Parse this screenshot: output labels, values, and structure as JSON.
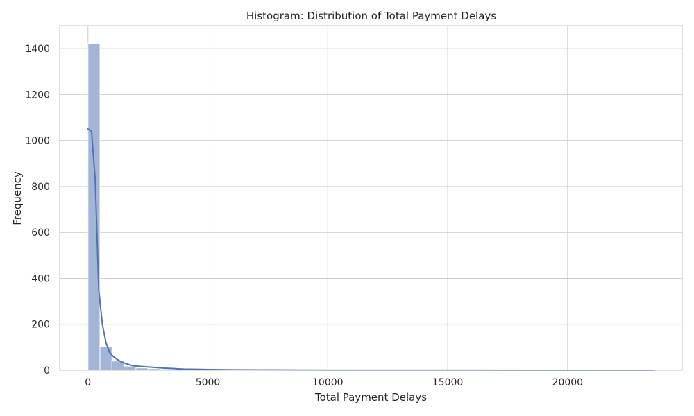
{
  "chart_data": {
    "type": "histogram",
    "title": "Histogram: Distribution of Total Payment Delays",
    "xlabel": "Total Payment Delays",
    "ylabel": "Frequency",
    "xlim": [
      -1180,
      24780
    ],
    "ylim": [
      0,
      1500
    ],
    "xticks": [
      0,
      5000,
      10000,
      15000,
      20000
    ],
    "yticks": [
      0,
      200,
      400,
      600,
      800,
      1000,
      1200,
      1400
    ],
    "grid": true,
    "bin_width": 500,
    "bins": [
      {
        "x0": 0,
        "x1": 500,
        "count": 1422
      },
      {
        "x0": 500,
        "x1": 1000,
        "count": 102
      },
      {
        "x0": 1000,
        "x1": 1500,
        "count": 40
      },
      {
        "x0": 1500,
        "x1": 2000,
        "count": 18
      },
      {
        "x0": 2000,
        "x1": 2500,
        "count": 10
      },
      {
        "x0": 2500,
        "x1": 3000,
        "count": 7
      },
      {
        "x0": 3000,
        "x1": 3500,
        "count": 5
      },
      {
        "x0": 3500,
        "x1": 4000,
        "count": 4
      },
      {
        "x0": 4000,
        "x1": 4500,
        "count": 3
      },
      {
        "x0": 4500,
        "x1": 5000,
        "count": 2
      },
      {
        "x0": 5000,
        "x1": 5500,
        "count": 2
      },
      {
        "x0": 5500,
        "x1": 6000,
        "count": 2
      },
      {
        "x0": 6000,
        "x1": 6500,
        "count": 1
      },
      {
        "x0": 7000,
        "x1": 7500,
        "count": 1
      },
      {
        "x0": 10000,
        "x1": 10500,
        "count": 1
      },
      {
        "x0": 10500,
        "x1": 11000,
        "count": 1
      },
      {
        "x0": 17500,
        "x1": 18000,
        "count": 1
      },
      {
        "x0": 23500,
        "x1": 24000,
        "count": 1
      }
    ],
    "kde": {
      "x": [
        0,
        150,
        300,
        450,
        600,
        750,
        900,
        1050,
        1200,
        1400,
        1600,
        1800,
        2000,
        2400,
        2800,
        3200,
        3600,
        4000,
        4500,
        5000,
        6000,
        7000,
        8000,
        10000,
        12000,
        16000,
        20000,
        23600
      ],
      "y": [
        1050,
        1040,
        830,
        350,
        200,
        120,
        78,
        60,
        48,
        36,
        28,
        22,
        18,
        15,
        12,
        9,
        7,
        5,
        4,
        3,
        2,
        1.5,
        1,
        0.5,
        0.3,
        0.2,
        0.1,
        0.1
      ]
    },
    "colors": {
      "bar_fill": "#a3b5d7",
      "bar_edge": "#ffffff",
      "kde_line": "#4c72b0",
      "grid": "#cccccc",
      "frame": "#cccccc"
    }
  }
}
